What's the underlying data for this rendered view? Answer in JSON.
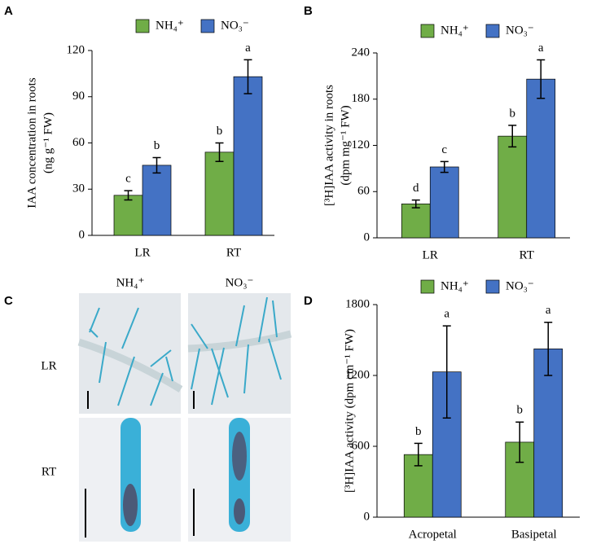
{
  "chart_data": [
    {
      "type": "bar",
      "panel": "A",
      "ylabel": [
        "IAA concentration in roots",
        "(ng g⁻¹ FW)"
      ],
      "categories": [
        "LR",
        "RT"
      ],
      "ylim": [
        0,
        120
      ],
      "yticks": [
        0,
        30,
        60,
        90,
        120
      ],
      "series": [
        {
          "name": "NH₄⁺",
          "color": "#70ad47",
          "values": [
            26,
            54
          ],
          "errors": [
            3,
            6
          ],
          "letters": [
            "c",
            "b"
          ]
        },
        {
          "name": "NO₃⁻",
          "color": "#4472c4",
          "values": [
            45.5,
            103
          ],
          "errors": [
            5,
            11
          ],
          "letters": [
            "b",
            "a"
          ]
        }
      ]
    },
    {
      "type": "bar",
      "panel": "B",
      "ylabel": [
        "[³H]IAA activity in roots",
        "(dpm mg⁻¹ FW)"
      ],
      "categories": [
        "LR",
        "RT"
      ],
      "ylim": [
        0,
        240
      ],
      "yticks": [
        0,
        60,
        120,
        180,
        240
      ],
      "series": [
        {
          "name": "NH₄⁺",
          "color": "#70ad47",
          "values": [
            44,
            132
          ],
          "errors": [
            5,
            14
          ],
          "letters": [
            "d",
            "b"
          ]
        },
        {
          "name": "NO₃⁻",
          "color": "#4472c4",
          "values": [
            92,
            206
          ],
          "errors": [
            7,
            25
          ],
          "letters": [
            "c",
            "a"
          ]
        }
      ]
    },
    {
      "type": "bar",
      "panel": "D",
      "ylabel": [
        "[³H]IAA activity (dpm cm⁻¹ FW)"
      ],
      "categories": [
        "Acropetal",
        "Basipetal"
      ],
      "ylim": [
        0,
        1800
      ],
      "yticks": [
        0,
        600,
        1200,
        1800
      ],
      "series": [
        {
          "name": "NH₄⁺",
          "color": "#70ad47",
          "values": [
            530,
            635
          ],
          "errors": [
            95,
            170
          ],
          "letters": [
            "b",
            "b"
          ]
        },
        {
          "name": "NO₃⁻",
          "color": "#4472c4",
          "values": [
            1230,
            1425
          ],
          "errors": [
            390,
            225
          ],
          "letters": [
            "a",
            "a"
          ]
        }
      ]
    }
  ],
  "image_panel": {
    "panel": "C",
    "columns": [
      "NH₄⁺",
      "NO₃⁻"
    ],
    "rows": [
      "LR",
      "RT"
    ]
  }
}
